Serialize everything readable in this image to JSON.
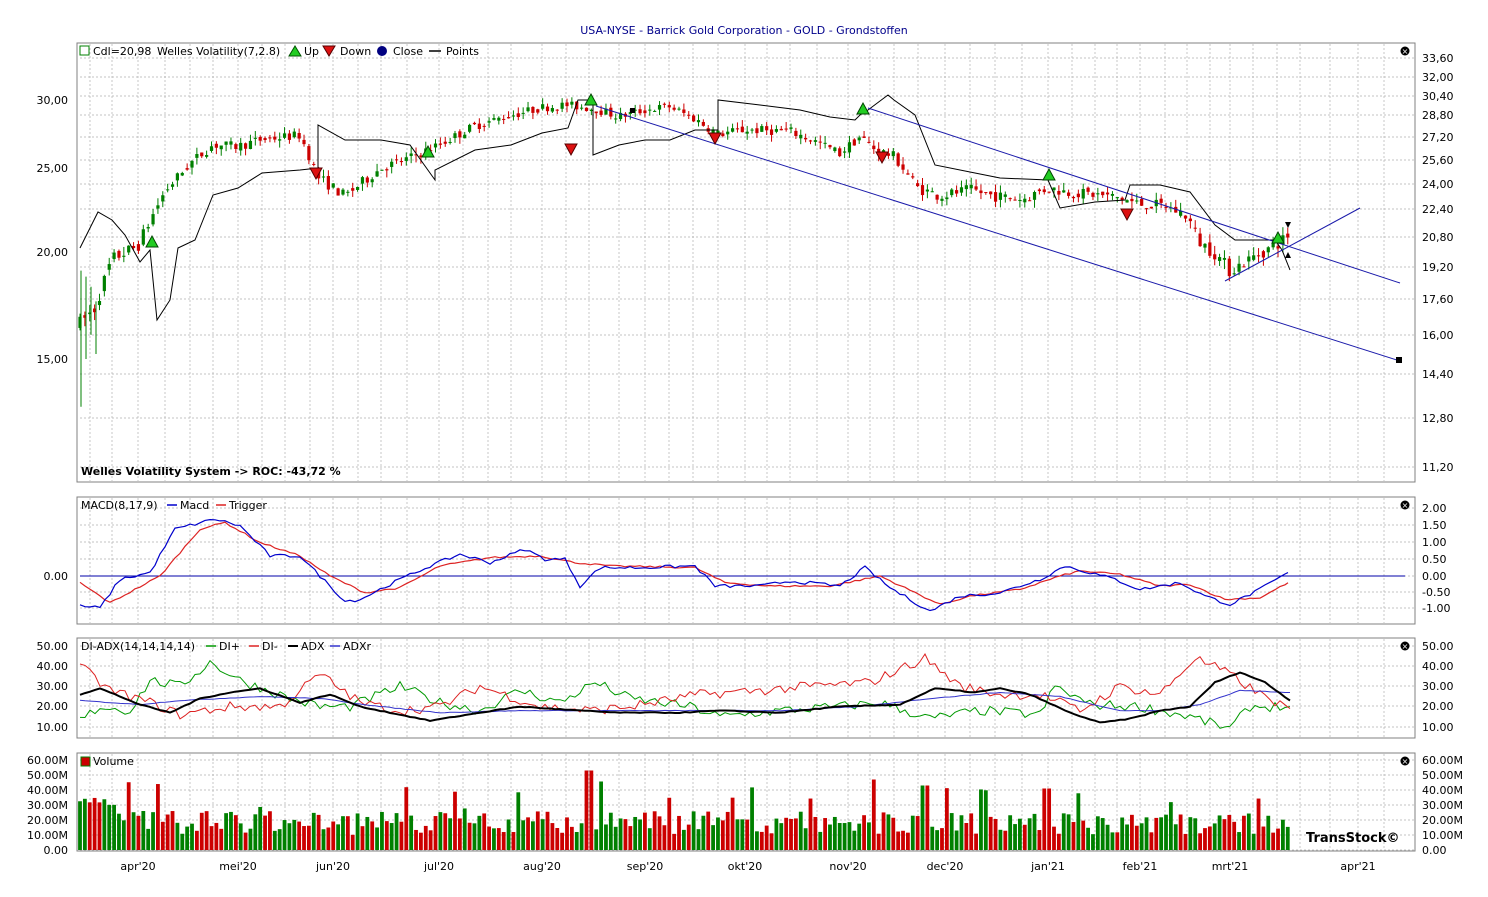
{
  "title": "USA-NYSE - Barrick Gold Corporation - GOLD - Grondstoffen",
  "colors": {
    "up": "#008000",
    "down": "#cc0000",
    "macd": "#0000cc",
    "trigger": "#dd2222",
    "diplus": "#009900",
    "diminus": "#dd2222",
    "adx": "#000000",
    "adxr": "#3333cc",
    "channel": "#1a1aaa"
  },
  "panels": {
    "price": {
      "legend": {
        "cdl": "Cdl=20,98",
        "system": "Welles Volatility(7,2.8)",
        "up": "Up",
        "down": "Down",
        "close": "Close",
        "points": "Points"
      },
      "footer": "Welles Volatility System -> ROC: -43,72 %",
      "left_ticks": [
        "30,00",
        "25,00",
        "20,00",
        "15,00"
      ],
      "right_ticks": [
        "33,60",
        "32,00",
        "30,40",
        "28,80",
        "27,20",
        "25,60",
        "24,00",
        "22,40",
        "20,80",
        "19,20",
        "17,60",
        "16,00",
        "14,40",
        "12,80",
        "11,20"
      ]
    },
    "macd": {
      "legend": {
        "name": "MACD(8,17,9)",
        "macd": "Macd",
        "trigger": "Trigger"
      },
      "left_ticks": [
        "0.00"
      ],
      "right_ticks": [
        "2.00",
        "1.50",
        "1.00",
        "0.50",
        "0.00",
        "-0.50",
        "-1.00"
      ]
    },
    "adx": {
      "legend": {
        "name": "DI-ADX(14,14,14,14)",
        "diplus": "DI+",
        "diminus": "DI-",
        "adx": "ADX",
        "adxr": "ADXr"
      },
      "left_ticks": [
        "50.00",
        "40.00",
        "30.00",
        "20.00",
        "10.00"
      ],
      "right_ticks": [
        "50.00",
        "40.00",
        "30.00",
        "20.00",
        "10.00"
      ]
    },
    "volume": {
      "legend": {
        "name": "Volume"
      },
      "left_ticks": [
        "60.00M",
        "50.00M",
        "40.00M",
        "30.00M",
        "20.00M",
        "10.00M",
        "0.00"
      ],
      "right_ticks": [
        "60.00M",
        "50.00M",
        "40.00M",
        "30.00M",
        "20.00M",
        "10.00M",
        "0.00"
      ],
      "watermark": "TransStock©"
    }
  },
  "x_labels": [
    "apr'20",
    "mei'20",
    "jun'20",
    "jul'20",
    "aug'20",
    "sep'20",
    "okt'20",
    "nov'20",
    "dec'20",
    "jan'21",
    "feb'21",
    "mrt'21",
    "apr'21"
  ],
  "chart_data": {
    "type": "candlestick",
    "title": "USA-NYSE - Barrick Gold Corporation - GOLD - Grondstoffen",
    "months": [
      "apr'20",
      "mei'20",
      "jun'20",
      "jul'20",
      "aug'20",
      "sep'20",
      "okt'20",
      "nov'20",
      "dec'20",
      "jan'21",
      "feb'21",
      "mrt'21"
    ],
    "monthly_close": [
      20.5,
      26.8,
      24.2,
      26.9,
      29.6,
      27.2,
      26.5,
      26.2,
      23.2,
      23.8,
      21.4,
      20.6
    ],
    "last_close": 20.98,
    "roc_percent": -43.72,
    "price_range": [
      11.2,
      33.6
    ],
    "indicators": [
      "MACD(8,17,9)",
      "DI-ADX(14,14,14,14)",
      "Volume"
    ]
  }
}
